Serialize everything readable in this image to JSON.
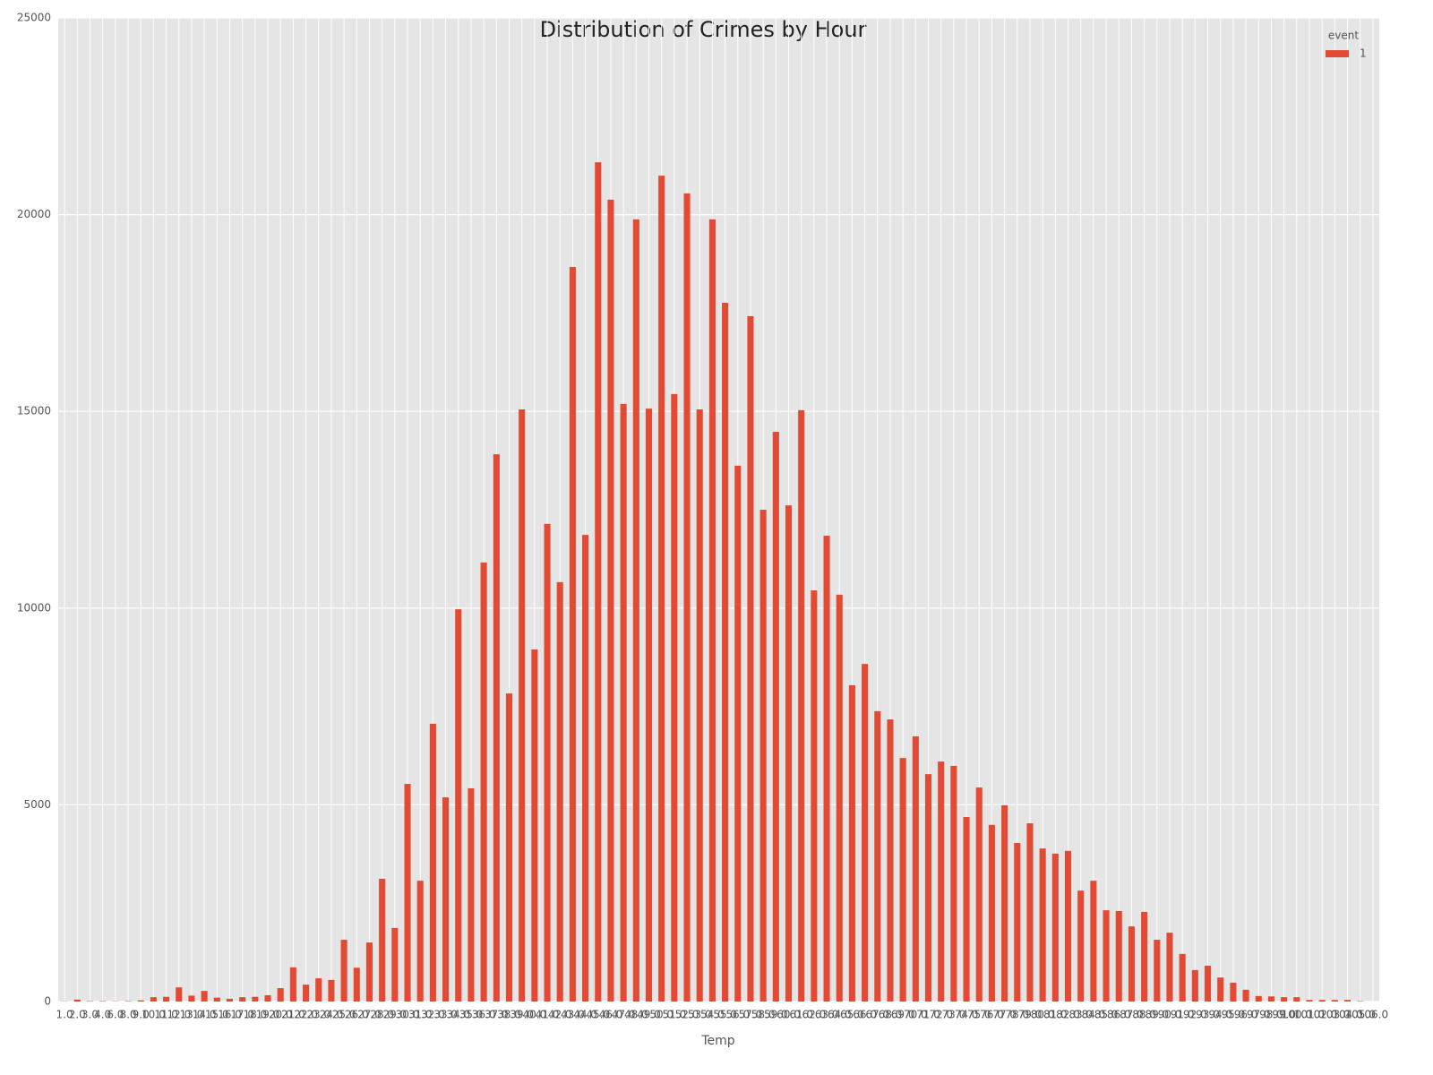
{
  "chart_data": {
    "type": "bar",
    "title": "Distribution of Crimes by Hour",
    "xlabel": "Temp",
    "legend_title": "event",
    "categories": [
      "1.0",
      "2.0",
      "3.0",
      "4.0",
      "6.0",
      "8.0",
      "9.0",
      "10.0",
      "11.0",
      "12.0",
      "13.0",
      "14.0",
      "15.0",
      "16.0",
      "17.0",
      "18.0",
      "19.0",
      "20.0",
      "21.0",
      "22.0",
      "23.0",
      "24.0",
      "25.0",
      "26.0",
      "27.0",
      "28.0",
      "29.0",
      "30.0",
      "31.0",
      "32.0",
      "33.0",
      "34.0",
      "35.0",
      "36.0",
      "37.0",
      "38.0",
      "39.0",
      "40.0",
      "41.0",
      "42.0",
      "43.0",
      "44.0",
      "45.0",
      "46.0",
      "47.0",
      "48.0",
      "49.0",
      "50.0",
      "51.0",
      "52.0",
      "53.0",
      "54.0",
      "55.0",
      "56.0",
      "57.0",
      "58.0",
      "59.0",
      "60.0",
      "61.0",
      "62.0",
      "63.0",
      "64.0",
      "65.0",
      "66.0",
      "67.0",
      "68.0",
      "69.0",
      "70.0",
      "71.0",
      "72.0",
      "73.0",
      "74.0",
      "75.0",
      "76.0",
      "77.0",
      "78.0",
      "79.0",
      "80.0",
      "81.0",
      "82.0",
      "83.0",
      "84.0",
      "85.0",
      "86.0",
      "87.0",
      "88.0",
      "89.0",
      "90.0",
      "91.0",
      "92.0",
      "93.0",
      "94.0",
      "95.0",
      "96.0",
      "97.0",
      "98.0",
      "99.0",
      "100.0",
      "101.0",
      "102.0",
      "103.0",
      "104.0",
      "105.0",
      "106.0"
    ],
    "series": [
      {
        "name": "1",
        "color": "#e24a33",
        "values": [
          5,
          50,
          10,
          10,
          5,
          10,
          30,
          110,
          120,
          360,
          150,
          270,
          100,
          70,
          110,
          120,
          160,
          340,
          870,
          430,
          590,
          550,
          1570,
          860,
          1500,
          3120,
          1870,
          5530,
          3070,
          7060,
          5190,
          9970,
          5420,
          11160,
          13910,
          7830,
          15050,
          8950,
          12140,
          10660,
          18670,
          11860,
          21330,
          20380,
          15190,
          19880,
          15070,
          20990,
          15440,
          20540,
          15050,
          19880,
          17760,
          13620,
          17420,
          12500,
          14480,
          12610,
          15030,
          10450,
          11840,
          10340,
          8040,
          8580,
          7380,
          7170,
          6190,
          6740,
          5780,
          6100,
          5990,
          4690,
          5440,
          4490,
          4990,
          4030,
          4530,
          3890,
          3760,
          3830,
          2820,
          3070,
          2320,
          2300,
          1910,
          2280,
          1570,
          1750,
          1210,
          800,
          910,
          610,
          480,
          300,
          140,
          130,
          110,
          110,
          40,
          40,
          40,
          40,
          10,
          0
        ]
      }
    ],
    "ylim": [
      0,
      25000
    ],
    "yticks": [
      0,
      5000,
      10000,
      15000,
      20000,
      25000
    ],
    "grid": true,
    "legend": "upper right"
  }
}
